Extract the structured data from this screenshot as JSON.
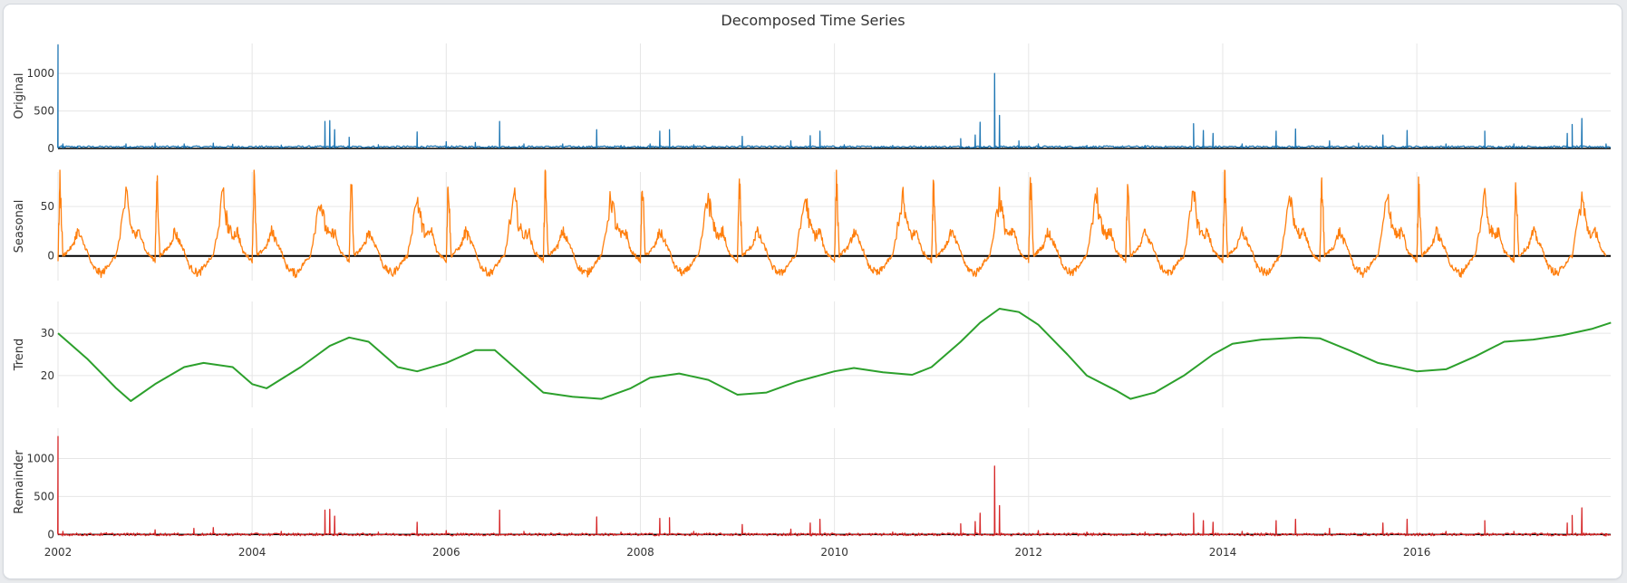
{
  "chart_data": {
    "type": "line",
    "title": "Decomposed Time Series",
    "x_range": [
      "2002-01-01",
      "2017-12-31"
    ],
    "x_ticks": [
      "2002",
      "2004",
      "2006",
      "2008",
      "2010",
      "2012",
      "2014",
      "2016"
    ],
    "grid": true,
    "panels": [
      {
        "name": "Original",
        "ylabel": "Original",
        "color": "#1f77b4",
        "ylim": [
          0,
          1400
        ],
        "y_ticks": [
          "0",
          "500",
          "1000"
        ],
        "baseline": 0,
        "points": [
          [
            2002.0,
            1380
          ],
          [
            2002.05,
            60
          ],
          [
            2002.2,
            30
          ],
          [
            2002.7,
            60
          ],
          [
            2003.0,
            70
          ],
          [
            2003.3,
            60
          ],
          [
            2003.6,
            70
          ],
          [
            2003.8,
            55
          ],
          [
            2004.3,
            45
          ],
          [
            2004.75,
            360
          ],
          [
            2004.8,
            370
          ],
          [
            2004.85,
            250
          ],
          [
            2005.0,
            150
          ],
          [
            2005.3,
            50
          ],
          [
            2005.7,
            220
          ],
          [
            2006.0,
            90
          ],
          [
            2006.3,
            80
          ],
          [
            2006.55,
            360
          ],
          [
            2006.8,
            60
          ],
          [
            2007.2,
            60
          ],
          [
            2007.55,
            250
          ],
          [
            2007.8,
            40
          ],
          [
            2008.1,
            60
          ],
          [
            2008.2,
            230
          ],
          [
            2008.3,
            250
          ],
          [
            2008.55,
            50
          ],
          [
            2009.05,
            160
          ],
          [
            2009.35,
            30
          ],
          [
            2009.55,
            100
          ],
          [
            2009.75,
            170
          ],
          [
            2009.85,
            230
          ],
          [
            2010.1,
            50
          ],
          [
            2010.6,
            40
          ],
          [
            2011.3,
            130
          ],
          [
            2011.45,
            180
          ],
          [
            2011.5,
            350
          ],
          [
            2011.65,
            1000
          ],
          [
            2011.7,
            440
          ],
          [
            2011.9,
            100
          ],
          [
            2012.1,
            60
          ],
          [
            2012.6,
            40
          ],
          [
            2013.2,
            40
          ],
          [
            2013.7,
            330
          ],
          [
            2013.8,
            240
          ],
          [
            2013.9,
            200
          ],
          [
            2014.2,
            60
          ],
          [
            2014.55,
            230
          ],
          [
            2014.75,
            260
          ],
          [
            2015.1,
            100
          ],
          [
            2015.4,
            70
          ],
          [
            2015.65,
            180
          ],
          [
            2015.9,
            240
          ],
          [
            2016.3,
            60
          ],
          [
            2016.7,
            230
          ],
          [
            2017.0,
            60
          ],
          [
            2017.55,
            200
          ],
          [
            2017.6,
            320
          ],
          [
            2017.7,
            400
          ],
          [
            2017.95,
            60
          ]
        ]
      },
      {
        "name": "Seasonal",
        "ylabel": "Seasonal",
        "color": "#ff7f0e",
        "ylim": [
          -25,
          85
        ],
        "y_ticks": [
          "0",
          "50"
        ],
        "baseline": 0,
        "period_years": 1,
        "points": [
          [
            0.0,
            -5
          ],
          [
            0.02,
            80
          ],
          [
            0.05,
            0
          ],
          [
            0.1,
            5
          ],
          [
            0.15,
            10
          ],
          [
            0.2,
            25
          ],
          [
            0.25,
            15
          ],
          [
            0.3,
            5
          ],
          [
            0.35,
            -10
          ],
          [
            0.4,
            -15
          ],
          [
            0.45,
            -18
          ],
          [
            0.5,
            -12
          ],
          [
            0.55,
            -5
          ],
          [
            0.6,
            0
          ],
          [
            0.7,
            60
          ],
          [
            0.75,
            30
          ],
          [
            0.8,
            20
          ],
          [
            0.85,
            25
          ],
          [
            0.9,
            5
          ],
          [
            0.95,
            0
          ],
          [
            1.0,
            -5
          ]
        ]
      },
      {
        "name": "Trend",
        "ylabel": "Trend",
        "color": "#2ca02c",
        "ylim": [
          12.5,
          37.5
        ],
        "y_ticks": [
          "20",
          "30"
        ],
        "points": [
          [
            2002.0,
            30
          ],
          [
            2002.3,
            24
          ],
          [
            2002.6,
            17
          ],
          [
            2002.75,
            14
          ],
          [
            2003.0,
            18
          ],
          [
            2003.3,
            22
          ],
          [
            2003.5,
            23
          ],
          [
            2003.8,
            22
          ],
          [
            2004.0,
            18
          ],
          [
            2004.15,
            17
          ],
          [
            2004.5,
            22
          ],
          [
            2004.8,
            27
          ],
          [
            2005.0,
            29
          ],
          [
            2005.2,
            28
          ],
          [
            2005.5,
            22
          ],
          [
            2005.7,
            21
          ],
          [
            2006.0,
            23
          ],
          [
            2006.3,
            26
          ],
          [
            2006.5,
            26
          ],
          [
            2006.8,
            20
          ],
          [
            2007.0,
            16
          ],
          [
            2007.3,
            15
          ],
          [
            2007.6,
            14.5
          ],
          [
            2007.9,
            17
          ],
          [
            2008.1,
            19.5
          ],
          [
            2008.4,
            20.5
          ],
          [
            2008.7,
            19
          ],
          [
            2009.0,
            15.5
          ],
          [
            2009.3,
            16
          ],
          [
            2009.6,
            18.5
          ],
          [
            2010.0,
            21
          ],
          [
            2010.2,
            21.8
          ],
          [
            2010.5,
            20.8
          ],
          [
            2010.8,
            20.2
          ],
          [
            2011.0,
            22
          ],
          [
            2011.3,
            28
          ],
          [
            2011.5,
            32.5
          ],
          [
            2011.7,
            35.8
          ],
          [
            2011.9,
            35
          ],
          [
            2012.1,
            32
          ],
          [
            2012.4,
            25
          ],
          [
            2012.6,
            20
          ],
          [
            2012.9,
            16.5
          ],
          [
            2013.05,
            14.5
          ],
          [
            2013.3,
            16
          ],
          [
            2013.6,
            20
          ],
          [
            2013.9,
            25
          ],
          [
            2014.1,
            27.5
          ],
          [
            2014.4,
            28.5
          ],
          [
            2014.8,
            29
          ],
          [
            2015.0,
            28.8
          ],
          [
            2015.3,
            26
          ],
          [
            2015.6,
            23
          ],
          [
            2016.0,
            21
          ],
          [
            2016.3,
            21.5
          ],
          [
            2016.6,
            24.5
          ],
          [
            2016.9,
            28
          ],
          [
            2017.2,
            28.5
          ],
          [
            2017.5,
            29.5
          ],
          [
            2017.8,
            31
          ],
          [
            2018.0,
            32.5
          ]
        ]
      },
      {
        "name": "Remainder",
        "ylabel": "Remainder",
        "color": "#d62728",
        "ylim": [
          -20,
          1400
        ],
        "y_ticks": [
          "0",
          "500",
          "1000"
        ],
        "baseline": 0,
        "points": [
          [
            2002.0,
            1290
          ],
          [
            2002.05,
            40
          ],
          [
            2002.5,
            20
          ],
          [
            2003.0,
            60
          ],
          [
            2003.4,
            80
          ],
          [
            2003.6,
            90
          ],
          [
            2004.3,
            40
          ],
          [
            2004.75,
            320
          ],
          [
            2004.8,
            330
          ],
          [
            2004.85,
            240
          ],
          [
            2005.3,
            30
          ],
          [
            2005.7,
            160
          ],
          [
            2006.0,
            50
          ],
          [
            2006.55,
            320
          ],
          [
            2006.8,
            40
          ],
          [
            2007.55,
            230
          ],
          [
            2007.8,
            30
          ],
          [
            2008.2,
            210
          ],
          [
            2008.3,
            220
          ],
          [
            2008.55,
            40
          ],
          [
            2009.05,
            130
          ],
          [
            2009.55,
            70
          ],
          [
            2009.75,
            150
          ],
          [
            2009.85,
            200
          ],
          [
            2010.6,
            30
          ],
          [
            2011.3,
            140
          ],
          [
            2011.45,
            170
          ],
          [
            2011.5,
            280
          ],
          [
            2011.65,
            900
          ],
          [
            2011.7,
            380
          ],
          [
            2012.1,
            50
          ],
          [
            2012.6,
            30
          ],
          [
            2013.2,
            30
          ],
          [
            2013.7,
            280
          ],
          [
            2013.8,
            180
          ],
          [
            2013.9,
            160
          ],
          [
            2014.2,
            40
          ],
          [
            2014.55,
            180
          ],
          [
            2014.75,
            200
          ],
          [
            2015.1,
            80
          ],
          [
            2015.65,
            150
          ],
          [
            2015.9,
            200
          ],
          [
            2016.3,
            40
          ],
          [
            2016.7,
            180
          ],
          [
            2017.0,
            40
          ],
          [
            2017.55,
            150
          ],
          [
            2017.6,
            250
          ],
          [
            2017.7,
            350
          ],
          [
            2017.95,
            -20
          ]
        ]
      }
    ]
  }
}
